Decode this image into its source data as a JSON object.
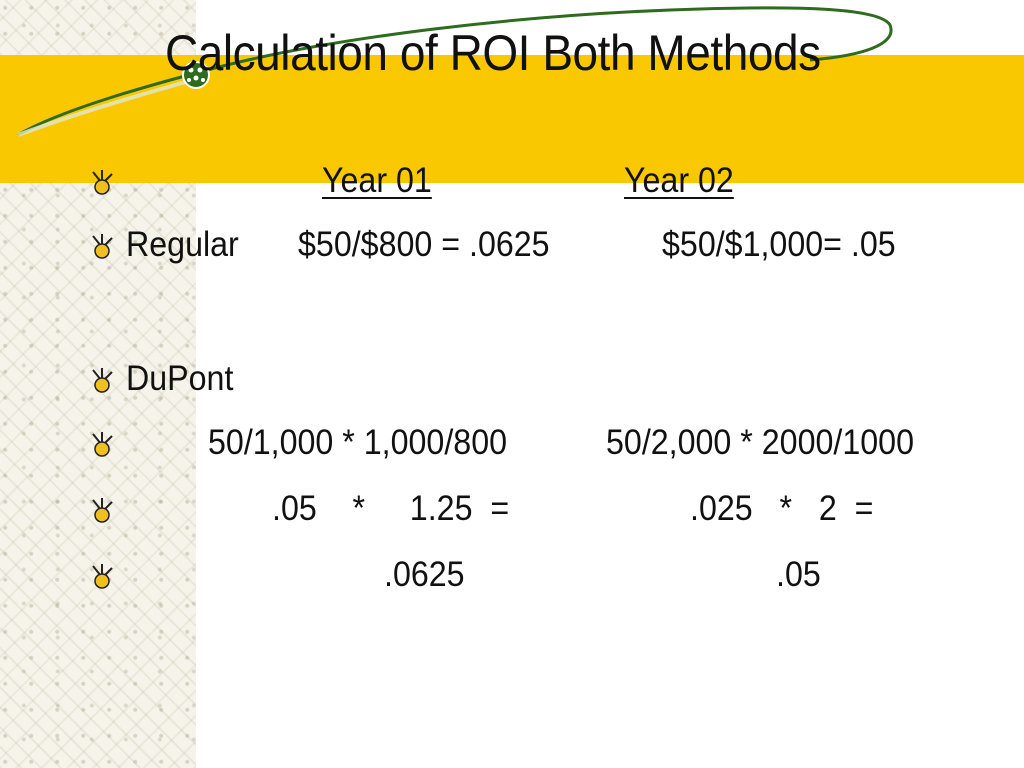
{
  "slide": {
    "title": "Calculation of ROI Both Methods",
    "rows": [
      {
        "id": "header",
        "cells": [
          "Year 01",
          "Year 02"
        ]
      },
      {
        "id": "regular",
        "cells": [
          "Regular",
          "$50/$800 = .0625",
          "$50/$1,000= .05"
        ]
      },
      {
        "id": "dupont",
        "cells": [
          "DuPont"
        ]
      },
      {
        "id": "dupont-formula",
        "cells": [
          "50/1,000 * 1,000/800",
          "50/2,000 * 2000/1000"
        ]
      },
      {
        "id": "dupont-factors",
        "cells": [
          ".05    *     1.25  =",
          ".025   *   2  ="
        ]
      },
      {
        "id": "dupont-result",
        "cells": [
          ".0625",
          ".05"
        ]
      }
    ],
    "bullet_icon": "spark-bullet-icon",
    "colors": {
      "band": "#f9c800",
      "swoosh": "#2e6b1f",
      "text": "#111111"
    }
  }
}
